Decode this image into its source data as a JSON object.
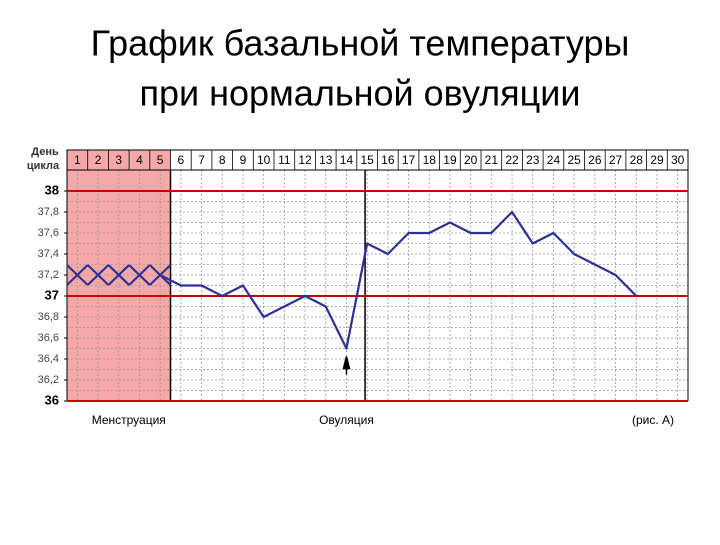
{
  "chart_data": {
    "type": "line",
    "title": [
      "График базальной температуры",
      "при нормальной овуляции"
    ],
    "x_label": [
      "День",
      "цикла"
    ],
    "categories": [
      1,
      2,
      3,
      4,
      5,
      6,
      7,
      8,
      9,
      10,
      11,
      12,
      13,
      14,
      15,
      16,
      17,
      18,
      19,
      20,
      21,
      22,
      23,
      24,
      25,
      26,
      27,
      28,
      29,
      30
    ],
    "values": [
      37.2,
      37.2,
      37.2,
      37.2,
      37.2,
      37.1,
      37.1,
      37.0,
      37.1,
      36.8,
      36.9,
      37.0,
      36.9,
      36.5,
      37.5,
      37.4,
      37.6,
      37.6,
      37.7,
      37.6,
      37.6,
      37.8,
      37.5,
      37.6,
      37.4,
      37.3,
      37.2,
      37.0,
      null,
      null
    ],
    "color": "#2e3192",
    "menstruation_days": [
      1,
      5
    ],
    "menstruation_color": "#f4a9a8",
    "ovulation_day": 14,
    "ylim": [
      36,
      38
    ],
    "yticks": [
      36,
      {
        "value": 36.2,
        "label": "36,2"
      },
      {
        "value": 36.4,
        "label": "36,4"
      },
      {
        "value": 36.6,
        "label": "36,6"
      },
      {
        "value": 36.8,
        "label": "36,8"
      },
      37,
      {
        "value": 37.2,
        "label": "37,2"
      },
      {
        "value": 37.4,
        "label": "37,4"
      },
      {
        "value": 37.6,
        "label": "37,6"
      },
      {
        "value": 37.8,
        "label": "37,8"
      },
      38
    ],
    "reference_lines": [
      36,
      37,
      38
    ],
    "reference_color": "#cc0000",
    "annotations": [
      "Менструация",
      "Овуляция",
      "(рис. А)"
    ]
  }
}
